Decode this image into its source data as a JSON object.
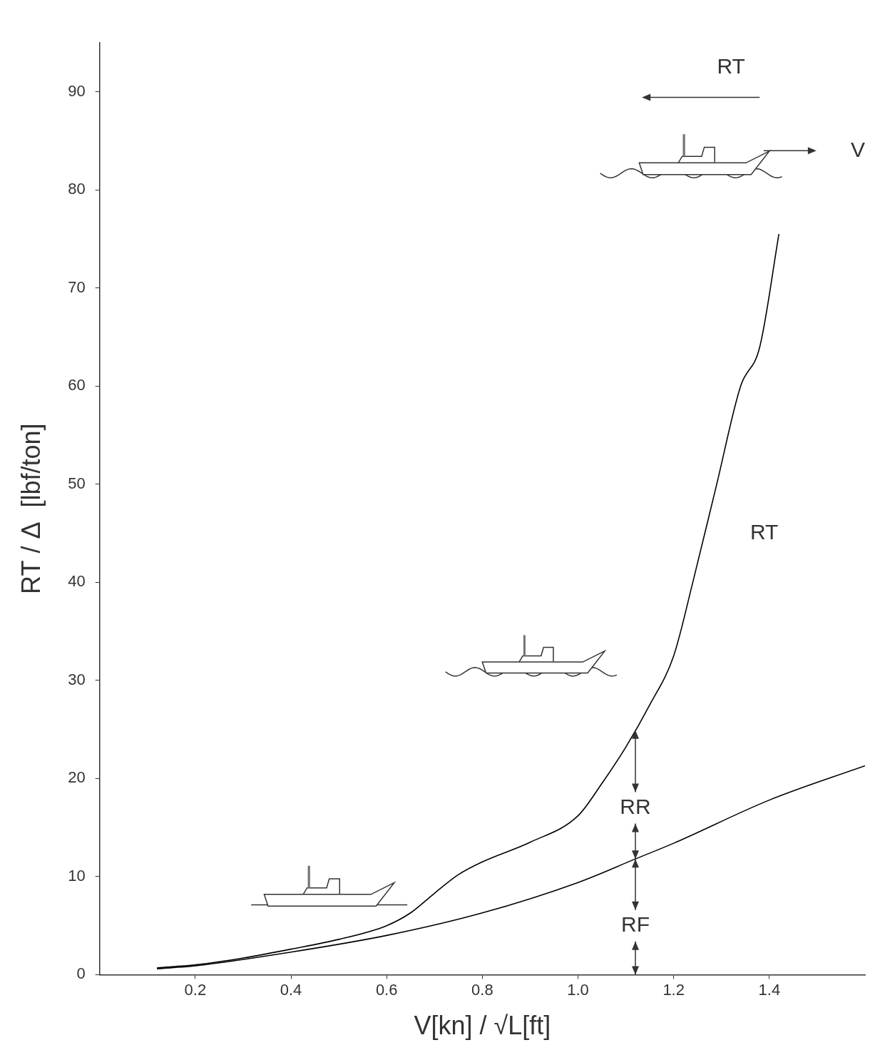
{
  "chart_data": {
    "type": "line",
    "x_label": "V[kn] / √L[ft]",
    "y_label": "RT / Δ  [lbf/ton]",
    "series": [
      {
        "name": "RT",
        "color": "#000000",
        "x": [
          0.12,
          0.2,
          0.3,
          0.4,
          0.5,
          0.6,
          0.65,
          0.7,
          0.75,
          0.8,
          0.9,
          1.0,
          1.05,
          1.1,
          1.15,
          1.2,
          1.24,
          1.29,
          1.34,
          1.38,
          1.42
        ],
        "values": [
          0.7,
          1.0,
          1.7,
          2.6,
          3.6,
          5.0,
          6.3,
          8.3,
          10.2,
          11.5,
          13.5,
          16.2,
          19.5,
          23.2,
          27.5,
          32.5,
          40,
          50,
          60,
          64,
          75.5
        ]
      },
      {
        "name": "RF",
        "color": "#000000",
        "x": [
          0.12,
          0.2,
          0.4,
          0.6,
          0.8,
          1.0,
          1.12,
          1.2,
          1.4,
          1.6
        ],
        "values": [
          0.6,
          0.9,
          2.3,
          4.0,
          6.3,
          9.4,
          11.8,
          13.4,
          17.8,
          21.3
        ]
      }
    ],
    "xlim": [
      0,
      1.6
    ],
    "xticks": [
      0.2,
      0.4,
      0.6,
      0.8,
      {
        "value": 1,
        "label": "1.0"
      },
      1.2,
      1.4
    ],
    "ylim": [
      0,
      95
    ],
    "yticks": [
      0,
      10,
      20,
      30,
      40,
      50,
      60,
      70,
      80,
      90
    ],
    "grid": false,
    "annotations": [
      {
        "text": "RT",
        "x": 1.36,
        "y": 45
      },
      {
        "text": "RR",
        "x": 1.12,
        "y": 17,
        "arrow": "vertical"
      },
      {
        "text": "RF",
        "x": 1.12,
        "y": 5,
        "arrow": "vertical"
      },
      {
        "text": "RT",
        "x": 1.32,
        "y": 92.5,
        "arrow": "left"
      },
      {
        "text": "V",
        "x": 1.57,
        "y": 84,
        "arrow": "right"
      }
    ]
  }
}
